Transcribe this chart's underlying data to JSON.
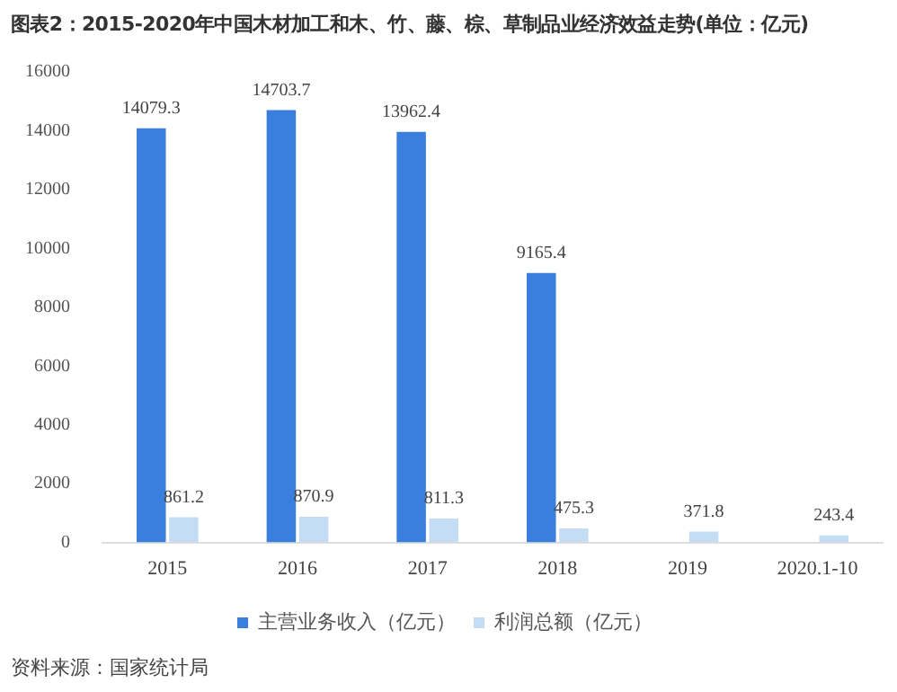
{
  "chart_data": {
    "type": "bar",
    "title": "图表2：2015-2020年中国木材加工和木、竹、藤、棕、草制品业经济效益走势(单位：亿元)",
    "categories": [
      "2015",
      "2016",
      "2017",
      "2018",
      "2019",
      "2020.1-10"
    ],
    "series": [
      {
        "name": "主营业务收入（亿元）",
        "color": "#3b7fde",
        "values": [
          14079.3,
          14703.7,
          13962.4,
          9165.4,
          null,
          null
        ],
        "value_labels": [
          "14079.3",
          "14703.7",
          "13962.4",
          "9165.4",
          null,
          null
        ]
      },
      {
        "name": "利润总额（亿元）",
        "color": "#c5dcf5",
        "values": [
          861.2,
          870.9,
          811.3,
          475.3,
          371.8,
          243.4
        ],
        "value_labels": [
          "861.2",
          "870.9",
          "811.3",
          "475.3",
          "371.8",
          "243.4"
        ]
      }
    ],
    "ylim": [
      0,
      16000
    ],
    "yticks": [
      0,
      2000,
      4000,
      6000,
      8000,
      10000,
      12000,
      14000,
      16000
    ],
    "grid": false,
    "legend": "bottom",
    "annotations": [
      "资料来源：国家统计局"
    ]
  }
}
